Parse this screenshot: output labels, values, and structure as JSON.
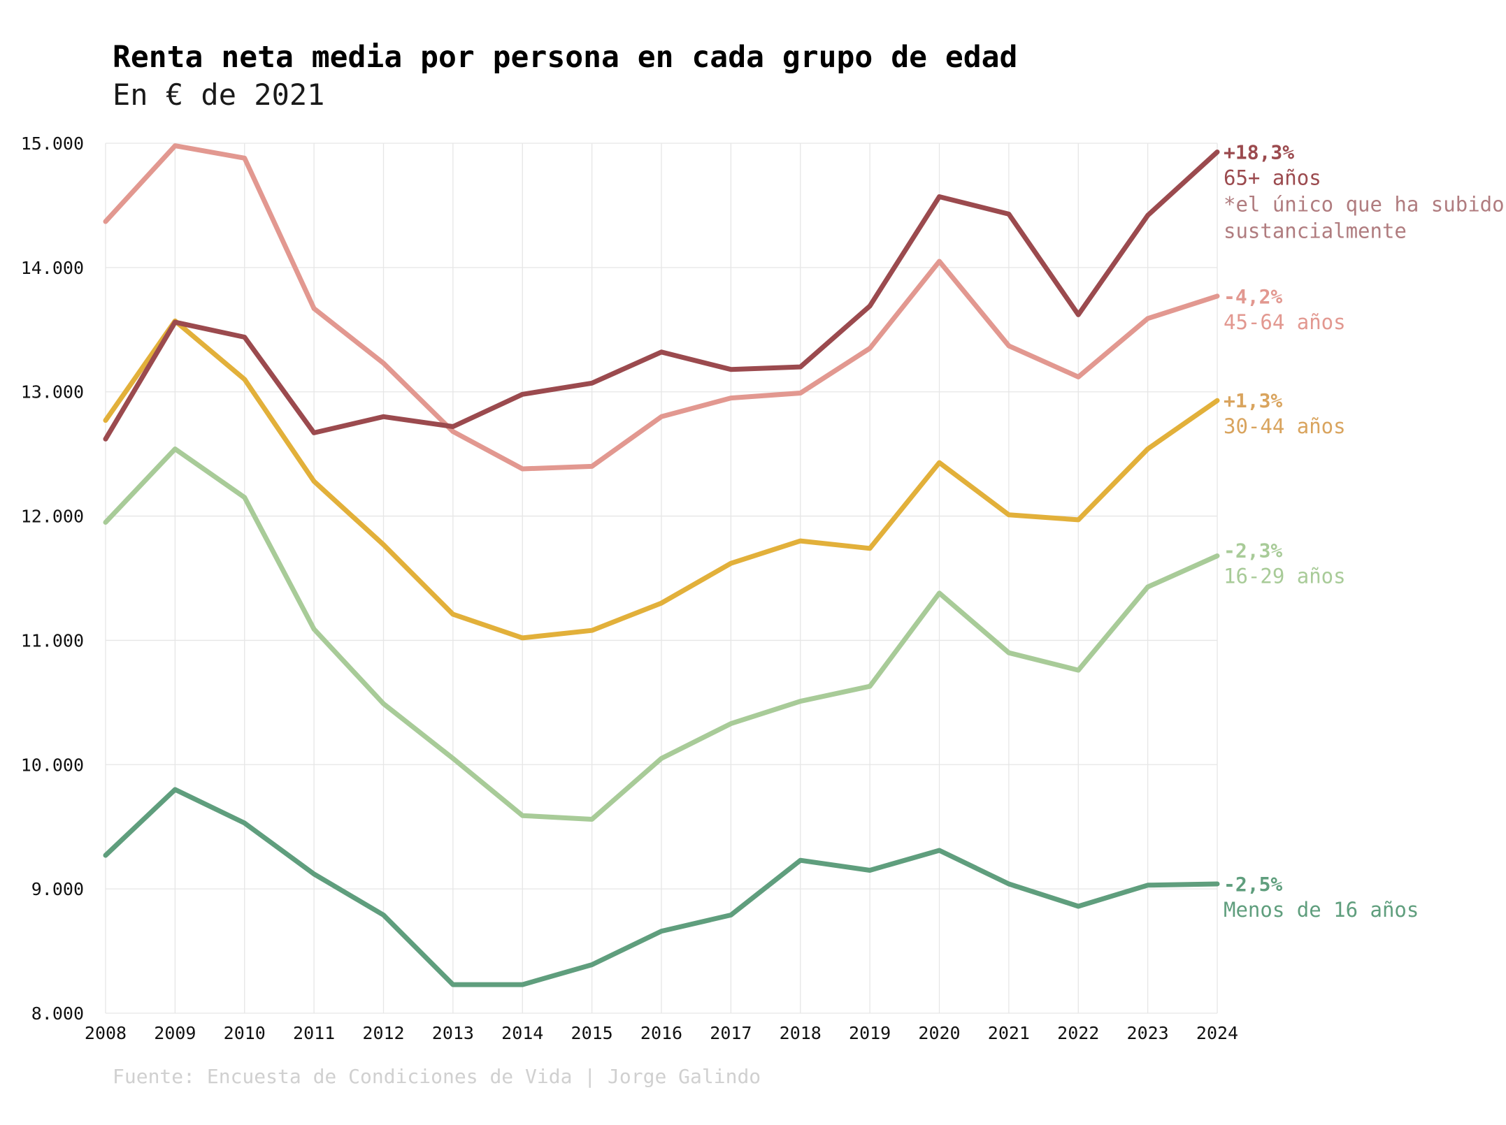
{
  "chart_data": {
    "type": "line",
    "title": "Renta neta media por persona en cada grupo de edad",
    "subtitle": "En € de 2021",
    "source": "Fuente: Encuesta de Condiciones de Vida | Jorge Galindo",
    "xlabel": "",
    "ylabel": "",
    "x": [
      "2008",
      "2009",
      "2010",
      "2011",
      "2012",
      "2013",
      "2014",
      "2015",
      "2016",
      "2017",
      "2018",
      "2019",
      "2020",
      "2021",
      "2022",
      "2023",
      "2024"
    ],
    "ylim": [
      8000,
      15000
    ],
    "yticks": [
      8000,
      9000,
      10000,
      11000,
      12000,
      13000,
      14000,
      15000
    ],
    "ytick_labels": [
      "8.000",
      "9.000",
      "10.000",
      "11.000",
      "12.000",
      "13.000",
      "14.000",
      "15.000"
    ],
    "grid": true,
    "legend": "direct labels at right end of lines",
    "series": [
      {
        "name": "65+ años",
        "change": "+18,3%",
        "note": [
          "*el único que ha subido",
          "sustancialmente"
        ],
        "color": "#9b4a4e",
        "note_color": "#b07c7f",
        "values": [
          12620,
          13560,
          13440,
          12670,
          12800,
          12720,
          12980,
          13070,
          13320,
          13180,
          13200,
          13690,
          14570,
          14430,
          13620,
          14420,
          14930
        ]
      },
      {
        "name": "45-64 años",
        "change": "-4,2%",
        "color": "#e29890",
        "values": [
          14370,
          14980,
          14880,
          13670,
          13230,
          12680,
          12380,
          12400,
          12800,
          12950,
          12990,
          13350,
          14050,
          13370,
          13120,
          13590,
          13770
        ]
      },
      {
        "name": "30-44 años",
        "change": "+1,3%",
        "color": "#e2b03a",
        "label_color": "#d9a45e",
        "values": [
          12770,
          13570,
          13100,
          12280,
          11770,
          11210,
          11020,
          11080,
          11300,
          11620,
          11800,
          11740,
          12430,
          12010,
          11970,
          12540,
          12930
        ]
      },
      {
        "name": "16-29 años",
        "change": "-2,3%",
        "color": "#a8cb98",
        "values": [
          11950,
          12540,
          12150,
          11090,
          10490,
          10050,
          9590,
          9560,
          10050,
          10330,
          10510,
          10630,
          11380,
          10900,
          10760,
          11430,
          11680
        ]
      },
      {
        "name": "Menos de 16 años",
        "change": "-2,5%",
        "color": "#5f9e7d",
        "values": [
          9270,
          9800,
          9530,
          9120,
          8790,
          8230,
          8230,
          8390,
          8660,
          8790,
          9230,
          9150,
          9310,
          9040,
          8860,
          9030,
          9040
        ]
      }
    ]
  }
}
